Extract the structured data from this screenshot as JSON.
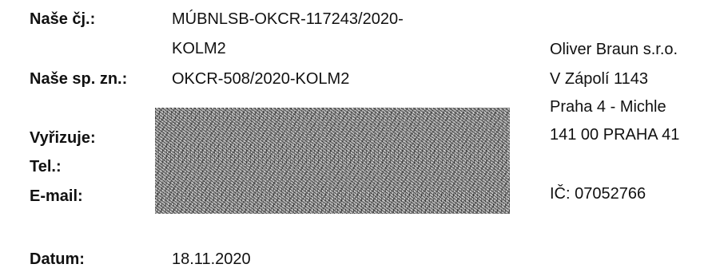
{
  "left_labels": {
    "nase_cj": "Naše čj.:",
    "nase_sp_zn": "Naše sp. zn.:",
    "vyrizuje": "Vyřizuje:",
    "tel": "Tel.:",
    "email": "E-mail:",
    "datum": "Datum:"
  },
  "values": {
    "nase_cj_line1": "MÚBNLSB-OKCR-117243/2020-",
    "nase_cj_line2": "KOLM2",
    "nase_sp_zn": "OKCR-508/2020-KOLM2",
    "datum": "18.11.2020"
  },
  "recipient": {
    "lines": [
      "Oliver Braun s.r.o.",
      "V Zápolí 1143",
      "Praha 4 - Michle",
      "141 00  PRAHA 41"
    ],
    "ico": "IČ: 07052766"
  }
}
